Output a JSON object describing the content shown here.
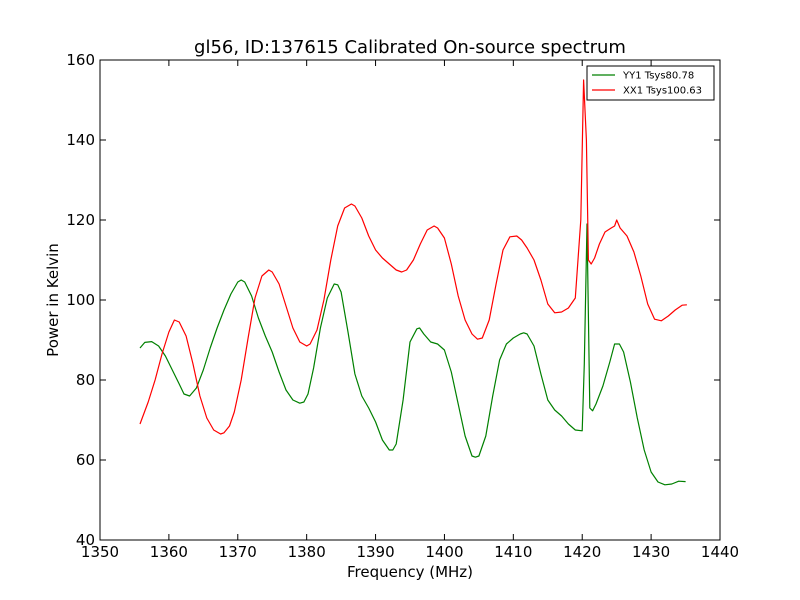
{
  "chart_data": {
    "type": "line",
    "title": "gl56, ID:137615 Calibrated On-source spectrum",
    "xlabel": "Frequency (MHz)",
    "ylabel": "Power in Kelvin",
    "xlim": [
      1350,
      1440
    ],
    "ylim": [
      40,
      160
    ],
    "xticks": [
      1350,
      1360,
      1370,
      1380,
      1390,
      1400,
      1410,
      1420,
      1430,
      1440
    ],
    "yticks": [
      40,
      60,
      80,
      100,
      120,
      140,
      160
    ],
    "grid": false,
    "legend_position": "top-right",
    "series": [
      {
        "name": "YY1 Tsys80.78",
        "color": "#008000",
        "x": [
          1355.8,
          1356.5,
          1357.5,
          1358.5,
          1359.5,
          1360.5,
          1361.5,
          1362.2,
          1363,
          1364,
          1365,
          1366,
          1367,
          1368,
          1369,
          1370,
          1370.5,
          1371,
          1372,
          1373,
          1374,
          1375,
          1376,
          1377,
          1378,
          1379,
          1379.6,
          1380.2,
          1381,
          1382,
          1383,
          1384,
          1384.5,
          1385,
          1386,
          1387,
          1388,
          1389,
          1390,
          1391,
          1392,
          1392.5,
          1393,
          1394,
          1395,
          1396,
          1396.4,
          1397,
          1398,
          1399,
          1400,
          1401,
          1402,
          1403,
          1404,
          1404.5,
          1405,
          1406,
          1407,
          1408,
          1409,
          1410,
          1411,
          1411.5,
          1412,
          1413,
          1414,
          1415,
          1416,
          1417,
          1418,
          1419,
          1420,
          1420.3,
          1420.7,
          1421.1,
          1421.5,
          1422,
          1423,
          1424,
          1424.7,
          1425.4,
          1426,
          1427,
          1428,
          1429,
          1430,
          1431,
          1432,
          1433,
          1434,
          1435
        ],
        "y": [
          88,
          89.4,
          89.6,
          88.5,
          86,
          82.5,
          79,
          76.5,
          76,
          78,
          82.5,
          88,
          93,
          97.5,
          101.5,
          104.5,
          105,
          104.5,
          101,
          95.5,
          91,
          87,
          82,
          77.5,
          75,
          74.2,
          74.5,
          76.5,
          83,
          93,
          100.5,
          104,
          103.8,
          102,
          92,
          81.5,
          76,
          73,
          69.5,
          65,
          62.5,
          62.5,
          64,
          75,
          89.5,
          92.8,
          93,
          91.5,
          89.5,
          89,
          87.5,
          82,
          74,
          66,
          61,
          60.7,
          61,
          66,
          76,
          85,
          89,
          90.5,
          91.5,
          91.8,
          91.5,
          88.5,
          81.5,
          75,
          72.5,
          71,
          69,
          67.5,
          67.3,
          84,
          119,
          73,
          72.3,
          74,
          78.5,
          84.5,
          89,
          89,
          87,
          79.5,
          70.5,
          62.5,
          57,
          54.5,
          53.8,
          54,
          54.7,
          54.6
        ]
      },
      {
        "name": "XX1 Tsys100.63",
        "color": "#ff0000",
        "x": [
          1355.8,
          1357,
          1358,
          1359,
          1360,
          1360.8,
          1361.5,
          1362.5,
          1363.5,
          1364.5,
          1365.5,
          1366.5,
          1367.5,
          1368,
          1368.8,
          1369.5,
          1370.5,
          1371.5,
          1372.5,
          1373.5,
          1374.5,
          1375,
          1376,
          1377,
          1378,
          1379,
          1380,
          1380.5,
          1381.5,
          1382.5,
          1383.5,
          1384.5,
          1385.5,
          1386.5,
          1387,
          1388,
          1389,
          1390,
          1391,
          1392,
          1393,
          1393.8,
          1394.5,
          1395.5,
          1396.5,
          1397.5,
          1398.5,
          1399,
          1400,
          1401,
          1402,
          1403,
          1404,
          1404.8,
          1405.5,
          1406.5,
          1407.5,
          1408.5,
          1409.5,
          1410.5,
          1411.2,
          1412,
          1413,
          1414,
          1415,
          1416,
          1417,
          1418,
          1419,
          1419.8,
          1420.2,
          1420.6,
          1420.9,
          1421.3,
          1421.8,
          1422.5,
          1423.3,
          1424.2,
          1424.7,
          1425,
          1425.5,
          1426.5,
          1427.5,
          1428.5,
          1429.5,
          1430.5,
          1431.5,
          1432.5,
          1433.5,
          1434.5,
          1435.2
        ],
        "y": [
          69,
          74.5,
          80,
          86.5,
          92,
          95,
          94.5,
          91,
          84,
          76,
          70.5,
          67.5,
          66.5,
          66.8,
          68.5,
          72,
          80,
          90.5,
          100.5,
          106,
          107.5,
          107,
          104,
          98.5,
          93,
          89.5,
          88.5,
          89,
          92.5,
          100,
          110,
          118.5,
          123,
          124,
          123.5,
          120.5,
          116,
          112.5,
          110.5,
          109,
          107.5,
          107,
          107.5,
          110,
          114,
          117.5,
          118.5,
          118,
          115.5,
          109,
          101,
          95,
          91.5,
          90.2,
          90.5,
          95,
          104,
          112.5,
          115.8,
          116,
          115,
          113,
          110,
          105,
          99,
          96.8,
          97,
          98,
          100.5,
          120,
          155,
          140,
          110,
          109,
          110.5,
          114,
          117,
          118,
          118.5,
          120,
          118,
          116,
          112,
          106,
          99,
          95.2,
          94.8,
          96,
          97.5,
          98.7,
          98.8
        ]
      }
    ]
  }
}
